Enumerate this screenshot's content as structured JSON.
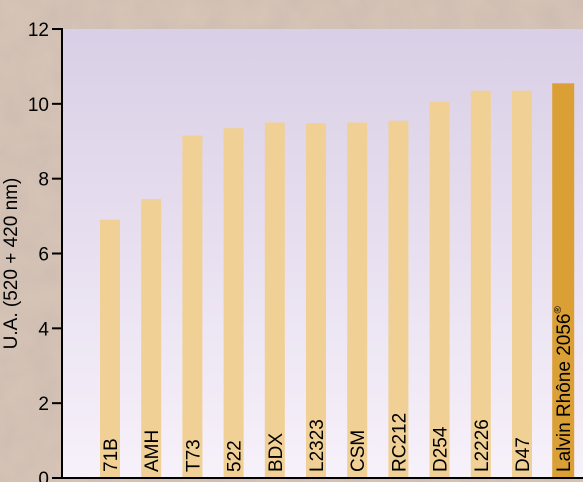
{
  "chart_data": {
    "type": "bar",
    "title": "",
    "xlabel": "",
    "ylabel": "U.A. (520 + 420 nm)",
    "ylim": [
      0,
      12
    ],
    "yticks": [
      "0",
      "2",
      "4",
      "6",
      "8",
      "10",
      "12"
    ],
    "ytick_values": [
      0,
      2,
      4,
      6,
      8,
      10,
      12
    ],
    "grid": false,
    "legend": "none",
    "categories": [
      "71B",
      "AMH",
      "T73",
      "522",
      "BDX",
      "L2323",
      "CSM",
      "RC212",
      "D254",
      "L2226",
      "D47",
      "Lalvin Rhône 2056"
    ],
    "values": [
      6.9,
      7.45,
      9.15,
      9.35,
      9.5,
      9.48,
      9.5,
      9.55,
      10.05,
      10.35,
      10.35,
      10.55
    ],
    "highlight_index": 11,
    "highlight_suffix": "®"
  },
  "colors": {
    "background_texture": "#d8c6b8",
    "plot_top": "#d9cfe6",
    "plot_bottom": "#f7f1fa",
    "bar": "#f0d095",
    "bar_highlight": "#dba035",
    "axis": "#000000",
    "text": "#000000"
  }
}
